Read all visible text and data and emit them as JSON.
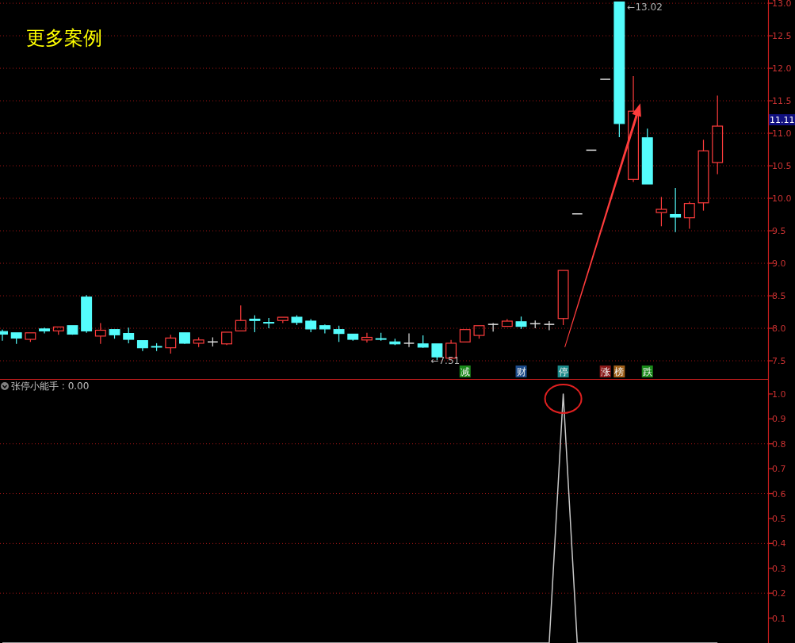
{
  "chart_data": [
    {
      "type": "candlestick",
      "title": "更多案例",
      "categories": [
        null,
        null,
        null,
        null,
        null,
        null,
        null,
        null,
        null,
        null,
        null,
        null,
        null,
        null,
        null,
        null,
        null,
        null,
        null,
        null,
        null,
        null,
        null,
        null,
        null,
        null,
        null,
        null,
        null,
        null,
        null,
        null,
        null,
        null,
        null,
        null,
        null,
        null,
        null,
        null,
        null,
        null,
        null,
        null,
        null,
        null,
        null,
        null,
        null,
        null,
        null,
        null
      ],
      "ohlc": [
        [
          7.95,
          7.98,
          7.81,
          7.91
        ],
        [
          7.93,
          7.93,
          7.76,
          7.85
        ],
        [
          7.83,
          7.93,
          7.79,
          7.93
        ],
        [
          7.99,
          8.01,
          7.92,
          7.96
        ],
        [
          7.96,
          8.02,
          7.9,
          8.02
        ],
        [
          8.04,
          8.04,
          7.9,
          7.91
        ],
        [
          8.48,
          8.51,
          7.93,
          7.96
        ],
        [
          7.88,
          8.08,
          7.76,
          7.97
        ],
        [
          7.98,
          7.98,
          7.84,
          7.9
        ],
        [
          7.92,
          8.01,
          7.77,
          7.83
        ],
        [
          7.81,
          7.81,
          7.65,
          7.7
        ],
        [
          7.72,
          7.77,
          7.65,
          7.71
        ],
        [
          7.7,
          7.9,
          7.61,
          7.85
        ],
        [
          7.93,
          7.93,
          7.76,
          7.77
        ],
        [
          7.77,
          7.86,
          7.71,
          7.82
        ],
        [
          7.79,
          7.86,
          7.72,
          7.79
        ],
        [
          7.76,
          7.94,
          7.74,
          7.94
        ],
        [
          7.96,
          8.35,
          7.96,
          8.12
        ],
        [
          8.14,
          8.2,
          7.94,
          8.12
        ],
        [
          8.09,
          8.16,
          8.0,
          8.08
        ],
        [
          8.12,
          8.17,
          8.08,
          8.17
        ],
        [
          8.17,
          8.2,
          8.05,
          8.09
        ],
        [
          8.11,
          8.14,
          7.94,
          7.99
        ],
        [
          8.04,
          8.06,
          7.92,
          7.99
        ],
        [
          7.98,
          8.04,
          7.79,
          7.92
        ],
        [
          7.91,
          7.91,
          7.81,
          7.83
        ],
        [
          7.82,
          7.93,
          7.78,
          7.86
        ],
        [
          7.84,
          7.93,
          7.81,
          7.83
        ],
        [
          7.79,
          7.84,
          7.74,
          7.76
        ],
        [
          7.77,
          7.92,
          7.71,
          7.77
        ],
        [
          7.76,
          7.89,
          7.7,
          7.71
        ],
        [
          7.76,
          7.76,
          7.51,
          7.56
        ],
        [
          7.54,
          7.82,
          7.54,
          7.77
        ],
        [
          7.79,
          7.98,
          7.79,
          7.98
        ],
        [
          7.89,
          8.04,
          7.84,
          8.04
        ],
        [
          8.06,
          8.08,
          7.95,
          8.06
        ],
        [
          8.03,
          8.14,
          8.03,
          8.11
        ],
        [
          8.1,
          8.18,
          7.99,
          8.03
        ],
        [
          8.07,
          8.12,
          8.0,
          8.07
        ],
        [
          8.06,
          8.11,
          7.97,
          8.06
        ],
        [
          8.15,
          8.89,
          8.05,
          8.89
        ],
        [
          9.76,
          9.76,
          9.76,
          9.76
        ],
        [
          10.74,
          10.74,
          10.74,
          10.74
        ],
        [
          11.83,
          11.83,
          11.83,
          11.83
        ],
        [
          13.02,
          13.02,
          10.94,
          11.15
        ],
        [
          10.29,
          11.88,
          10.25,
          11.34
        ],
        [
          10.93,
          11.07,
          10.22,
          10.22
        ],
        [
          9.78,
          10.02,
          9.57,
          9.83
        ],
        [
          9.75,
          10.16,
          9.48,
          9.71
        ],
        [
          9.7,
          9.95,
          9.53,
          9.92
        ],
        [
          9.93,
          10.9,
          9.81,
          10.73
        ],
        [
          10.55,
          11.58,
          10.37,
          11.11
        ]
      ],
      "colors": [
        "#54fcfc",
        "#54fcfc",
        "#ff3c3c",
        "#54fcfc",
        "#ff3c3c",
        "#54fcfc",
        "#54fcfc",
        "#ff3c3c",
        "#54fcfc",
        "#54fcfc",
        "#54fcfc",
        "#54fcfc",
        "#ff3c3c",
        "#54fcfc",
        "#ff3c3c",
        "#e0e0e0",
        "#ff3c3c",
        "#ff3c3c",
        "#54fcfc",
        "#54fcfc",
        "#ff3c3c",
        "#54fcfc",
        "#54fcfc",
        "#54fcfc",
        "#54fcfc",
        "#54fcfc",
        "#ff3c3c",
        "#54fcfc",
        "#54fcfc",
        "#e0e0e0",
        "#54fcfc",
        "#54fcfc",
        "#ff3c3c",
        "#ff3c3c",
        "#ff3c3c",
        "#e0e0e0",
        "#ff3c3c",
        "#54fcfc",
        "#e0e0e0",
        "#e0e0e0",
        "#ff3c3c",
        "#e0e0e0",
        "#e0e0e0",
        "#e0e0e0",
        "#54fcfc",
        "#ff3c3c",
        "#54fcfc",
        "#ff3c3c",
        "#54fcfc",
        "#ff3c3c",
        "#ff3c3c",
        "#ff3c3c"
      ],
      "ylim": [
        7.22,
        13.05
      ],
      "yticks": [
        {
          "value": 7.5,
          "label": "7.5"
        },
        {
          "value": 8,
          "label": "8.0"
        },
        {
          "value": 8.5,
          "label": "8.5"
        },
        {
          "value": 9,
          "label": "9.0"
        },
        {
          "value": 9.5,
          "label": "9.5"
        },
        {
          "value": 10,
          "label": "10.0"
        },
        {
          "value": 10.5,
          "label": "10.5"
        },
        {
          "value": 11,
          "label": "11.0"
        },
        {
          "value": 11.5,
          "label": "11.5"
        },
        {
          "value": 12,
          "label": "12.0"
        },
        {
          "value": 12.5,
          "label": "12.5"
        },
        {
          "value": 13,
          "label": "13.0"
        }
      ],
      "grid": "y",
      "annotations": [
        "←13.02",
        "←7.51",
        "11.11",
        "减",
        "财",
        "停",
        "涨",
        "榜",
        "跌"
      ]
    },
    {
      "type": "line",
      "title": "张停小能手 : 0.00",
      "categories": [
        null,
        null,
        null,
        null,
        null,
        null,
        null,
        null,
        null,
        null,
        null,
        null,
        null,
        null,
        null,
        null,
        null,
        null,
        null,
        null,
        null,
        null,
        null,
        null,
        null,
        null,
        null,
        null,
        null,
        null,
        null,
        null,
        null,
        null,
        null,
        null,
        null,
        null,
        null,
        null,
        null,
        null,
        null,
        null,
        null,
        null,
        null,
        null,
        null,
        null,
        null,
        null
      ],
      "series": [
        {
          "color": "#c8c8c8",
          "values": [
            0,
            0,
            0,
            0,
            0,
            0,
            0,
            0,
            0,
            0,
            0,
            0,
            0,
            0,
            0,
            0,
            0,
            0,
            0,
            0,
            0,
            0,
            0,
            0,
            0,
            0,
            0,
            0,
            0,
            0,
            0,
            0,
            0,
            0,
            0,
            0,
            0,
            0,
            0,
            0,
            1,
            0,
            0,
            0,
            0,
            0,
            0,
            0,
            0,
            0,
            0,
            0
          ]
        }
      ],
      "ylim": [
        0,
        1.057
      ],
      "yticks": [
        {
          "value": 0.1,
          "label": "0.1"
        },
        {
          "value": 0.2,
          "label": "0.2"
        },
        {
          "value": 0.3,
          "label": "0.3"
        },
        {
          "value": 0.4,
          "label": "0.4"
        },
        {
          "value": 0.5,
          "label": "0.5"
        },
        {
          "value": 0.6,
          "label": "0.6"
        },
        {
          "value": 0.7,
          "label": "0.7"
        },
        {
          "value": 0.8,
          "label": "0.8"
        },
        {
          "value": 0.9,
          "label": "0.9"
        },
        {
          "value": 1,
          "label": "1.0"
        }
      ],
      "grid": "y",
      "marker": "none",
      "line_style": "solid"
    }
  ]
}
